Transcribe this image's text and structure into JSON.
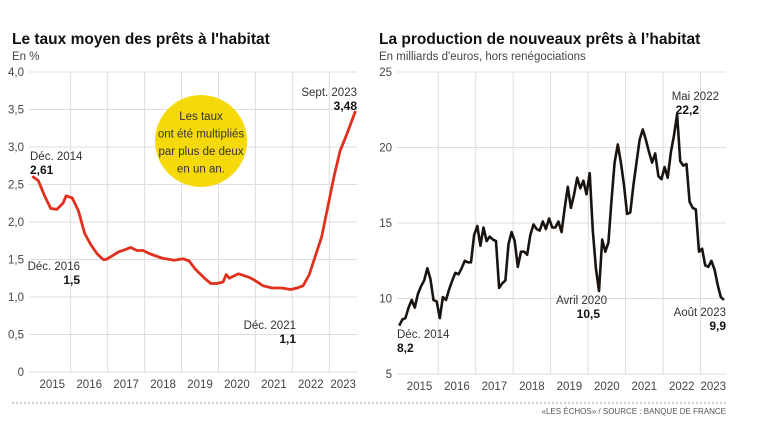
{
  "chart_data": [
    {
      "type": "line",
      "title": "Le taux moyen des prêts à l'habitat",
      "subtitle": "En %",
      "color": "#e0301e",
      "ylim": [
        0,
        4
      ],
      "yticks": [
        "0",
        "0,5",
        "1,0",
        "1,5",
        "2,0",
        "2,5",
        "3,0",
        "3,5",
        "4,0"
      ],
      "xticks": [
        "2015",
        "2016",
        "2017",
        "2018",
        "2019",
        "2020",
        "2021",
        "2022",
        "2023"
      ],
      "grid": true,
      "points": [
        [
          "2014-12",
          2.61
        ],
        [
          "2015-02",
          2.55
        ],
        [
          "2015-04",
          2.35
        ],
        [
          "2015-06",
          2.18
        ],
        [
          "2015-08",
          2.17
        ],
        [
          "2015-10",
          2.25
        ],
        [
          "2015-11",
          2.35
        ],
        [
          "2016-01",
          2.32
        ],
        [
          "2016-03",
          2.15
        ],
        [
          "2016-05",
          1.85
        ],
        [
          "2016-07",
          1.7
        ],
        [
          "2016-09",
          1.58
        ],
        [
          "2016-11",
          1.5
        ],
        [
          "2016-12",
          1.5
        ],
        [
          "2017-02",
          1.55
        ],
        [
          "2017-04",
          1.6
        ],
        [
          "2017-06",
          1.63
        ],
        [
          "2017-08",
          1.66
        ],
        [
          "2017-10",
          1.62
        ],
        [
          "2017-12",
          1.62
        ],
        [
          "2018-02",
          1.58
        ],
        [
          "2018-06",
          1.52
        ],
        [
          "2018-10",
          1.49
        ],
        [
          "2019-01",
          1.51
        ],
        [
          "2019-03",
          1.48
        ],
        [
          "2019-05",
          1.37
        ],
        [
          "2019-08",
          1.25
        ],
        [
          "2019-10",
          1.18
        ],
        [
          "2019-12",
          1.18
        ],
        [
          "2020-02",
          1.2
        ],
        [
          "2020-03",
          1.3
        ],
        [
          "2020-04",
          1.25
        ],
        [
          "2020-07",
          1.31
        ],
        [
          "2020-10",
          1.27
        ],
        [
          "2020-12",
          1.23
        ],
        [
          "2021-03",
          1.15
        ],
        [
          "2021-06",
          1.12
        ],
        [
          "2021-09",
          1.12
        ],
        [
          "2021-12",
          1.1
        ],
        [
          "2022-02",
          1.12
        ],
        [
          "2022-04",
          1.15
        ],
        [
          "2022-06",
          1.3
        ],
        [
          "2022-08",
          1.55
        ],
        [
          "2022-10",
          1.8
        ],
        [
          "2022-12",
          2.2
        ],
        [
          "2023-02",
          2.6
        ],
        [
          "2023-04",
          2.95
        ],
        [
          "2023-06",
          3.15
        ],
        [
          "2023-09",
          3.48
        ]
      ],
      "annotations": [
        {
          "label": "Déc. 2014",
          "value": "2,61"
        },
        {
          "label": "Déc. 2016",
          "value": "1,5"
        },
        {
          "label": "Déc. 2021",
          "value": "1,1"
        },
        {
          "label": "Sept. 2023",
          "value": "3,48"
        }
      ],
      "bubble": {
        "lines": [
          "Les taux",
          "ont été multipliés",
          "par plus de deux",
          "en un an."
        ],
        "color": "#f5d90a"
      }
    },
    {
      "type": "line",
      "title": "La production de nouveaux prêts à l’habitat",
      "subtitle": "En milliards d'euros, hors renégociations",
      "color": "#1a1410",
      "ylim": [
        5,
        25
      ],
      "yticks": [
        "5",
        "10",
        "15",
        "20",
        "25"
      ],
      "xticks": [
        "2015",
        "2016",
        "2017",
        "2018",
        "2019",
        "2020",
        "2021",
        "2022",
        "2023"
      ],
      "grid": true,
      "values_start": "2014-12",
      "values": [
        8.2,
        8.6,
        8.7,
        9.4,
        9.9,
        9.4,
        10.3,
        10.8,
        11.2,
        12.0,
        11.3,
        9.9,
        9.8,
        8.7,
        10.1,
        9.9,
        10.6,
        11.2,
        11.7,
        11.6,
        12.0,
        12.5,
        12.4,
        12.4,
        14.2,
        14.8,
        13.5,
        14.7,
        13.8,
        14.1,
        13.9,
        13.8,
        10.7,
        11.0,
        11.2,
        13.6,
        14.4,
        13.8,
        12.1,
        13.1,
        13.1,
        12.9,
        14.2,
        14.9,
        14.6,
        14.5,
        15.1,
        14.6,
        15.3,
        14.7,
        14.7,
        15.1,
        14.4,
        16.0,
        17.4,
        16.0,
        16.9,
        18.0,
        17.3,
        17.8,
        16.9,
        18.3,
        14.5,
        12.0,
        10.5,
        13.9,
        13.1,
        13.7,
        16.5,
        19.0,
        20.2,
        19.0,
        17.5,
        15.6,
        15.7,
        17.5,
        19.0,
        20.5,
        21.2,
        20.5,
        19.7,
        19.0,
        19.6,
        18.1,
        17.9,
        18.7,
        18.0,
        19.7,
        20.8,
        22.2,
        19.1,
        18.8,
        18.9,
        16.4,
        16.0,
        15.9,
        13.1,
        13.3,
        12.2,
        12.1,
        12.5,
        11.9,
        10.9,
        10.1,
        9.9
      ],
      "annotations": [
        {
          "label": "Déc. 2014",
          "value": "8,2"
        },
        {
          "label": "Avril 2020",
          "value": "10,5"
        },
        {
          "label": "Mai 2022",
          "value": "22,2"
        },
        {
          "label": "Août 2023",
          "value": "9,9"
        }
      ]
    }
  ],
  "source": "«LES ÉCHOS» / SOURCE : BANQUE DE FRANCE"
}
